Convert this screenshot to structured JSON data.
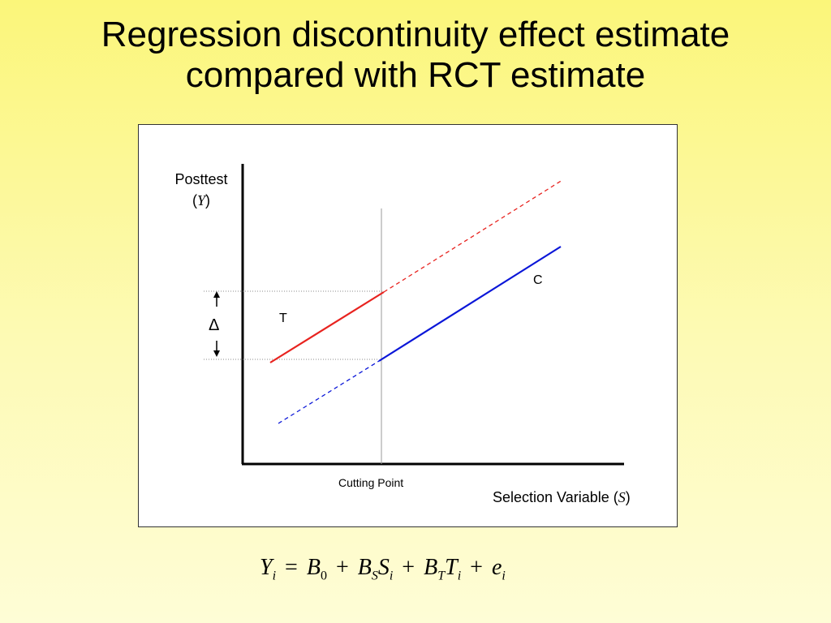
{
  "slide": {
    "title_line1": "Regression discontinuity effect estimate",
    "title_line2": "compared with RCT estimate"
  },
  "diagram": {
    "y_axis_label": "Posttest",
    "y_axis_symbol": "Y",
    "x_axis_label": "Selection Variable",
    "x_axis_symbol": "S",
    "cutting_point_label": "Cutting Point",
    "treatment_label": "T",
    "control_label": "C",
    "effect_label": "Δ",
    "colors": {
      "treatment": "#e8231f",
      "control": "#0a16d8"
    }
  },
  "equation": {
    "Y": "Y",
    "i": "i",
    "eq": "=",
    "B": "B",
    "zero": "0",
    "plus": "+",
    "S": "S",
    "T": "T",
    "e": "e"
  }
}
